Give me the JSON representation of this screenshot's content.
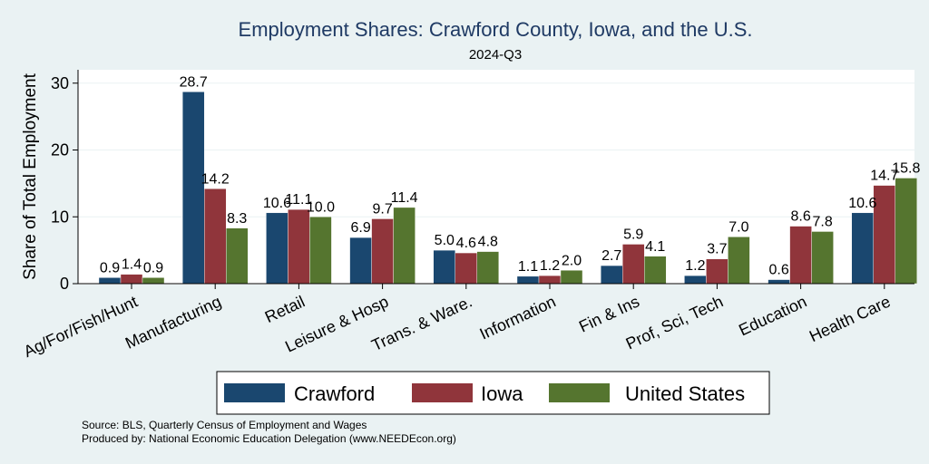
{
  "chart_data": {
    "type": "bar",
    "title": "Employment Shares: Crawford County, Iowa, and the U.S.",
    "subtitle": "2024-Q3",
    "ylabel": "Share of Total Employment",
    "xlabel": "",
    "ylim": [
      0,
      32
    ],
    "yticks": [
      0,
      10,
      20,
      30
    ],
    "grid": true,
    "legend_position": "bottom",
    "categories": [
      "Ag/For/Fish/Hunt",
      "Manufacturing",
      "Retail",
      "Leisure & Hosp",
      "Trans. & Ware.",
      "Information",
      "Fin & Ins",
      "Prof, Sci, Tech",
      "Education",
      "Health Care"
    ],
    "series": [
      {
        "name": "Crawford",
        "color": "#1a476f",
        "values": [
          0.9,
          28.7,
          10.6,
          6.9,
          5.0,
          1.1,
          2.7,
          1.2,
          0.6,
          10.6
        ],
        "labels": [
          "0.9",
          "28.7",
          "10.6",
          "6.9",
          "5.0",
          "1.1",
          "2.7",
          "1.2",
          "0.6",
          "10.6"
        ]
      },
      {
        "name": "Iowa",
        "color": "#90353b",
        "values": [
          1.4,
          14.2,
          11.1,
          9.7,
          4.6,
          1.2,
          5.9,
          3.7,
          8.6,
          14.7
        ],
        "labels": [
          "1.4",
          "14.2",
          "11.1",
          "9.7",
          "4.6",
          "1.2",
          "5.9",
          "3.7",
          "8.6",
          "14.7"
        ]
      },
      {
        "name": "United States",
        "color": "#55752f",
        "values": [
          0.9,
          8.3,
          10.0,
          11.4,
          4.8,
          2.0,
          4.1,
          7.0,
          7.8,
          15.8
        ],
        "labels": [
          "0.9",
          "8.3",
          "10.0",
          "11.4",
          "4.8",
          "2.0",
          "4.1",
          "7.0",
          "7.8",
          "15.8"
        ]
      }
    ],
    "notes": [
      "Source: BLS, Quarterly Census of Employment and Wages",
      "Produced by: National Economic Education Delegation (www.NEEDEcon.org)"
    ]
  }
}
